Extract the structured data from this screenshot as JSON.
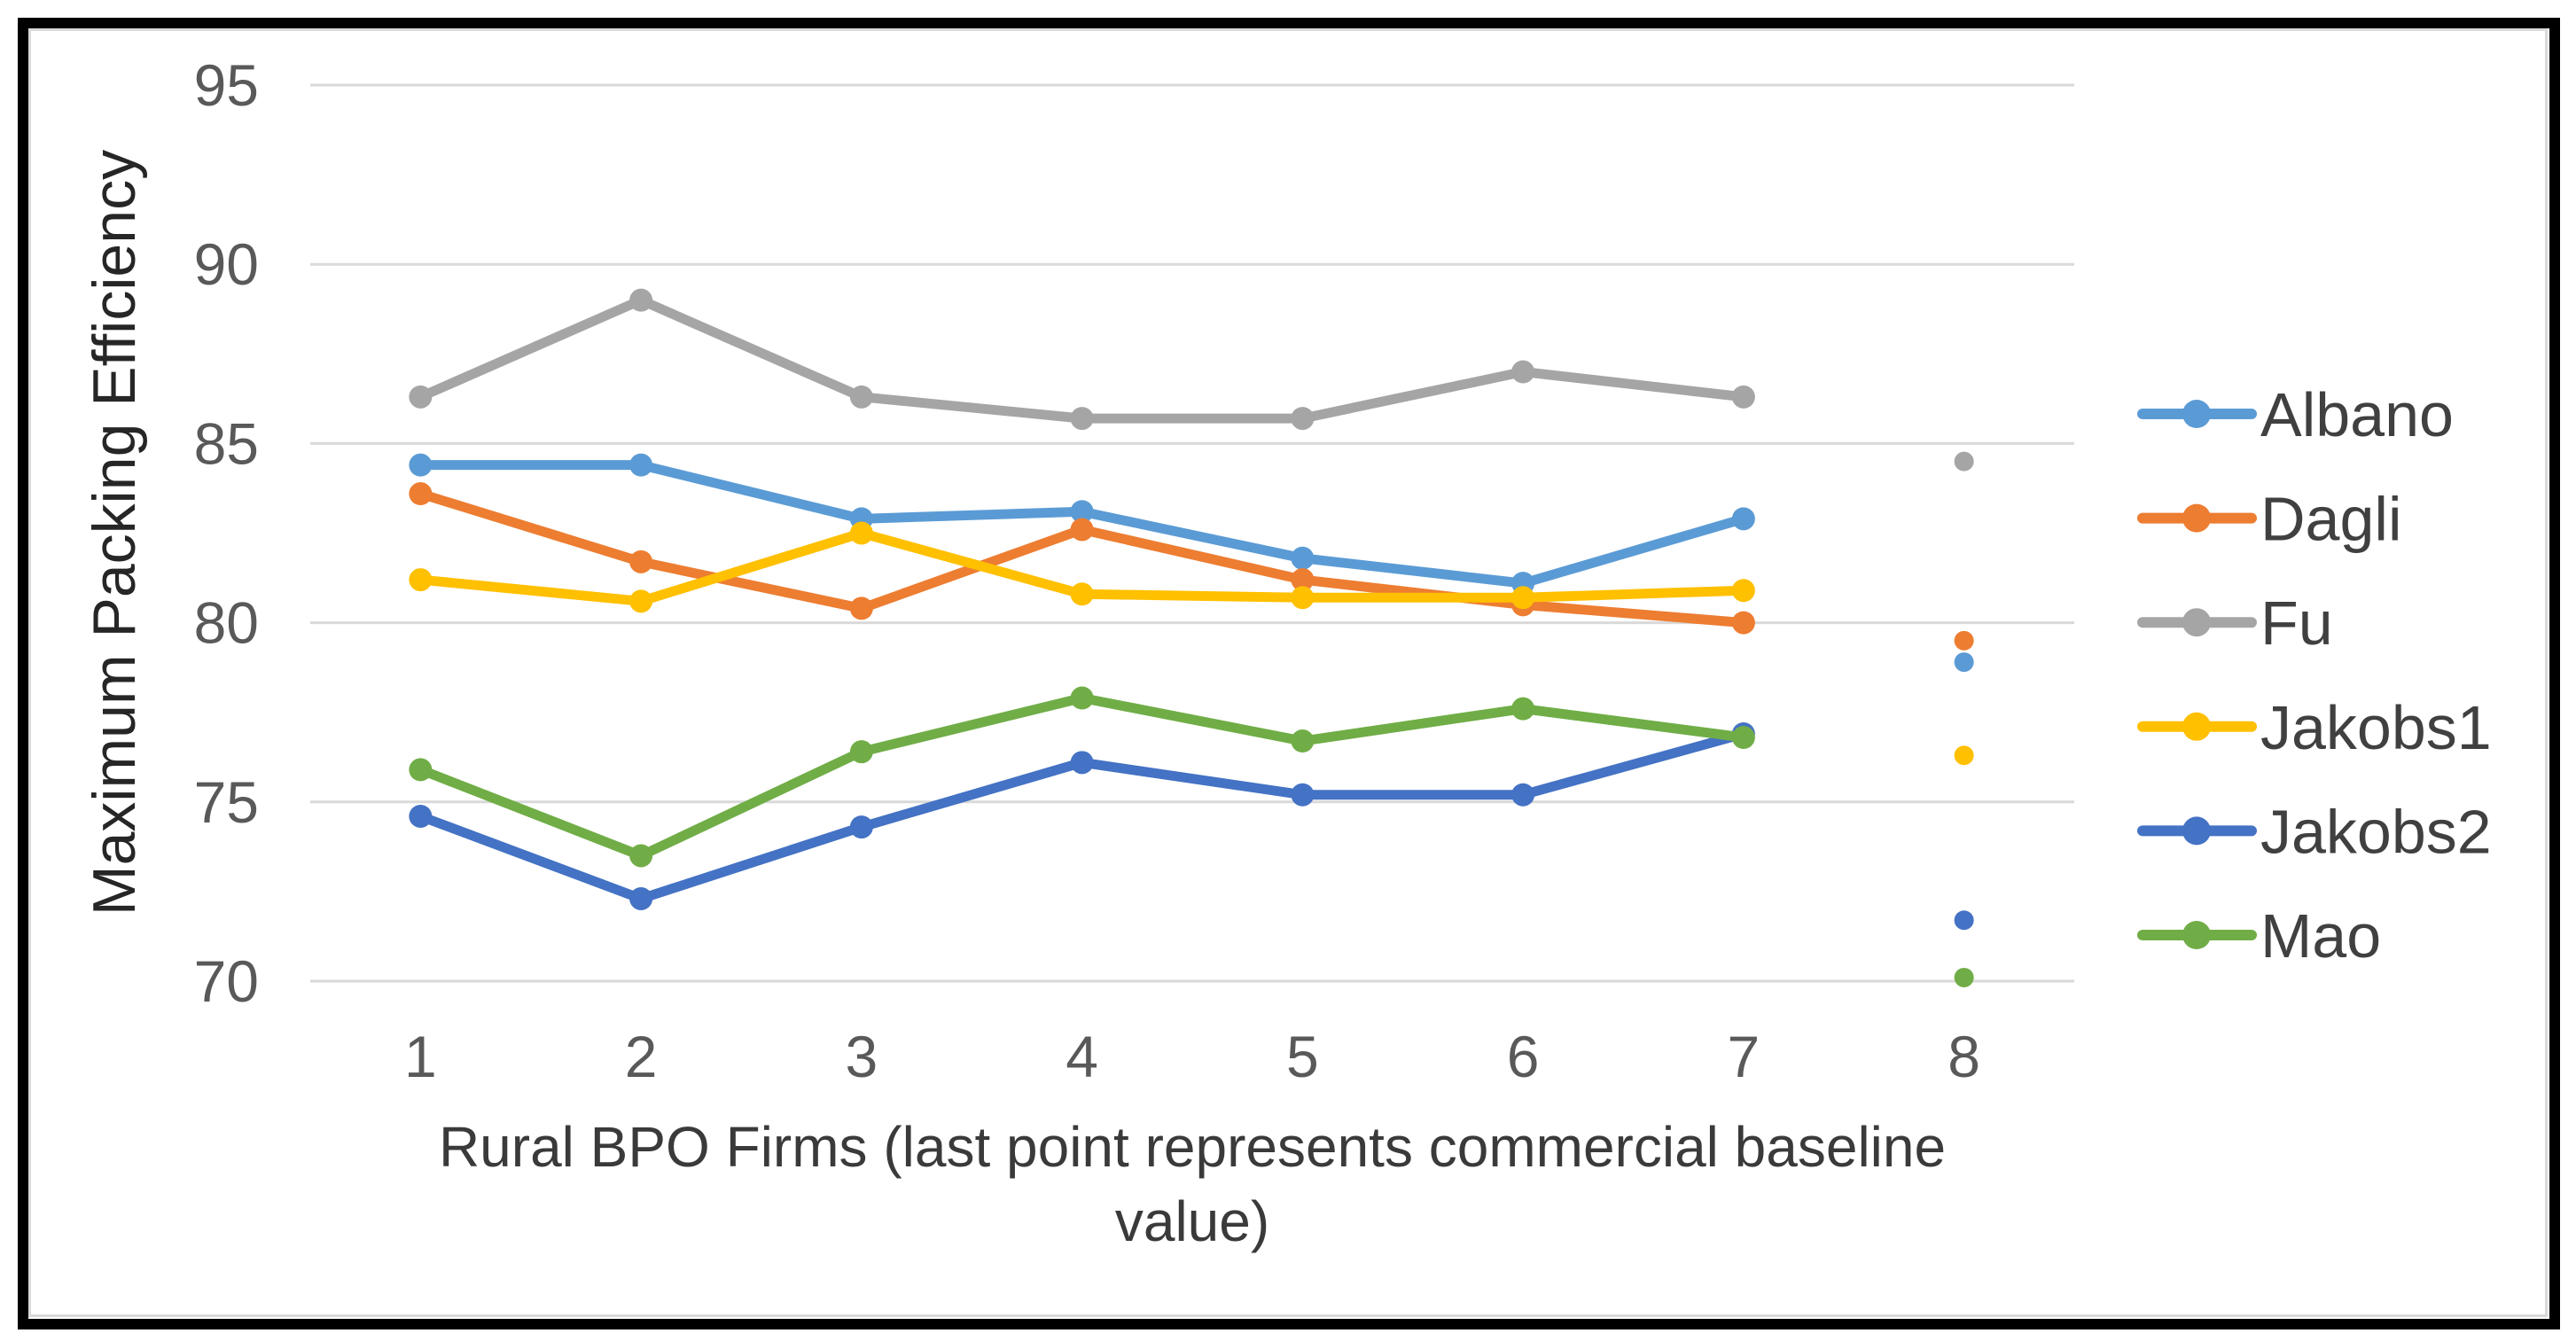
{
  "page": {
    "background_color": "#ffffff",
    "outer_frame_color": "#000000",
    "chart_border_color": "#d9d9d9"
  },
  "chart_data": {
    "type": "line",
    "title": "",
    "ylabel": "Maximum Packing Efficiency",
    "xlabel": "Rural BPO Firms (last point represents commercial baseline value)",
    "xlabel_lines": [
      "Rural BPO Firms (last point represents commercial baseline",
      "value)"
    ],
    "categories": [
      "1",
      "2",
      "3",
      "4",
      "5",
      "6",
      "7",
      "8"
    ],
    "yticks": [
      95,
      90,
      85,
      80,
      75,
      70
    ],
    "ylim": [
      70,
      95
    ],
    "grid": true,
    "gridline_color": "#d9d9d9",
    "tick_label_color": "#595959",
    "axis_title_color": "#3a3a3a",
    "legend_text_color": "#404040",
    "legend_position": "right",
    "marker_style": "circle",
    "last_point_isolated": true,
    "series": [
      {
        "name": "Albano",
        "color": "#5B9BD5",
        "values": [
          84.4,
          84.4,
          82.9,
          83.1,
          81.8,
          81.1,
          82.9,
          78.9
        ]
      },
      {
        "name": "Dagli",
        "color": "#ED7D31",
        "values": [
          83.6,
          81.7,
          80.4,
          82.6,
          81.2,
          80.5,
          80.0,
          79.5
        ]
      },
      {
        "name": "Fu",
        "color": "#A5A5A5",
        "values": [
          86.3,
          89.0,
          86.3,
          85.7,
          85.7,
          87.0,
          86.3,
          84.5
        ]
      },
      {
        "name": "Jakobs1",
        "color": "#FFC000",
        "values": [
          81.2,
          80.6,
          82.5,
          80.8,
          80.7,
          80.7,
          80.9,
          76.3
        ]
      },
      {
        "name": "Jakobs2",
        "color": "#4472C4",
        "values": [
          74.6,
          72.3,
          74.3,
          76.1,
          75.2,
          75.2,
          76.9,
          71.7
        ]
      },
      {
        "name": "Mao",
        "color": "#70AD47",
        "values": [
          75.9,
          73.5,
          76.4,
          77.9,
          76.7,
          77.6,
          76.8,
          70.1
        ]
      }
    ]
  }
}
